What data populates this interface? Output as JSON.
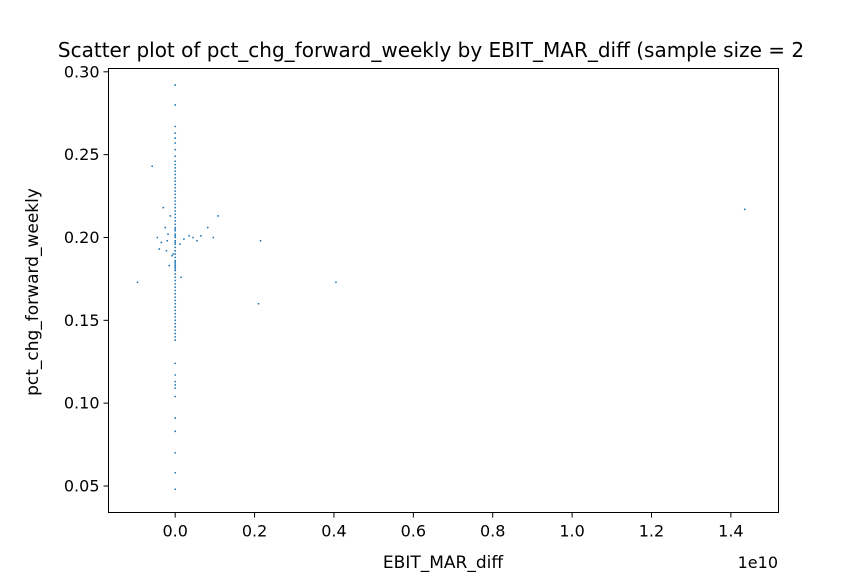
{
  "chart_data": {
    "type": "scatter",
    "title": "Scatter plot of pct_chg_forward_weekly by EBIT_MAR_diff (sample size = 2",
    "xlabel": "EBIT_MAR_diff",
    "ylabel": "pct_chg_forward_weekly",
    "x_offset_label": "1e10",
    "xlim": [
      -0.168,
      1.52
    ],
    "ylim": [
      0.034,
      0.302
    ],
    "x_ticks": [
      0.0,
      0.2,
      0.4,
      0.6,
      0.8,
      1.0,
      1.2,
      1.4
    ],
    "x_tick_labels": [
      "0.0",
      "0.2",
      "0.4",
      "0.6",
      "0.8",
      "1.0",
      "1.2",
      "1.4"
    ],
    "y_ticks": [
      0.05,
      0.1,
      0.15,
      0.2,
      0.25,
      0.3
    ],
    "y_tick_labels": [
      "0.05",
      "0.10",
      "0.15",
      "0.20",
      "0.25",
      "0.30"
    ],
    "grid": false,
    "marker_color": "#1f77b4",
    "series": [
      {
        "x": [
          0.0,
          0.0,
          0.0,
          0.0,
          0.0,
          0.0,
          0.0,
          0.0,
          0.0,
          0.0,
          0.0,
          0.0,
          0.0,
          0.0,
          0.0,
          0.0,
          0.0,
          0.0,
          0.0,
          0.0,
          0.0,
          0.0,
          0.0,
          0.0,
          0.0,
          0.0,
          0.0,
          0.0,
          0.0,
          0.0,
          0.0,
          0.0,
          0.0,
          0.0,
          0.0,
          0.0,
          0.0,
          0.0,
          0.0,
          0.0,
          0.0,
          0.0,
          0.0,
          0.0,
          0.0,
          0.0,
          0.0,
          0.0,
          0.0,
          0.0,
          0.0,
          0.0,
          0.0,
          0.0,
          0.0,
          0.0,
          0.0,
          0.0,
          0.0,
          0.0,
          0.0,
          0.0,
          0.0,
          0.0,
          0.0,
          0.0,
          0.0,
          0.0,
          0.0,
          0.0,
          0.0,
          0.0,
          0.0,
          0.0,
          0.0,
          0.0,
          0.0,
          0.0,
          0.0,
          0.0,
          0.0,
          -0.095,
          -0.058,
          -0.045,
          -0.035,
          -0.022,
          -0.015,
          -0.04,
          -0.03,
          -0.018,
          -0.02,
          -0.012,
          -0.008,
          -0.025,
          -0.005,
          0.012,
          0.015,
          0.022,
          0.035,
          0.045,
          0.055,
          0.065,
          0.082,
          0.096,
          0.108,
          0.21,
          0.215,
          0.405,
          1.435
        ],
        "y": [
          0.292,
          0.28,
          0.267,
          0.263,
          0.26,
          0.257,
          0.253,
          0.249,
          0.246,
          0.244,
          0.242,
          0.24,
          0.238,
          0.236,
          0.234,
          0.232,
          0.23,
          0.228,
          0.226,
          0.224,
          0.222,
          0.22,
          0.218,
          0.216,
          0.214,
          0.212,
          0.21,
          0.208,
          0.206,
          0.204,
          0.202,
          0.2,
          0.198,
          0.196,
          0.194,
          0.192,
          0.19,
          0.188,
          0.186,
          0.184,
          0.182,
          0.18,
          0.178,
          0.176,
          0.174,
          0.172,
          0.17,
          0.168,
          0.166,
          0.164,
          0.162,
          0.16,
          0.158,
          0.156,
          0.154,
          0.152,
          0.15,
          0.148,
          0.146,
          0.144,
          0.142,
          0.14,
          0.138,
          0.124,
          0.117,
          0.113,
          0.111,
          0.109,
          0.104,
          0.091,
          0.083,
          0.07,
          0.058,
          0.048,
          0.197,
          0.185,
          0.183,
          0.192,
          0.201,
          0.205,
          0.181,
          0.173,
          0.243,
          0.2,
          0.197,
          0.192,
          0.183,
          0.193,
          0.218,
          0.202,
          0.198,
          0.213,
          0.189,
          0.206,
          0.19,
          0.196,
          0.176,
          0.199,
          0.201,
          0.2,
          0.198,
          0.201,
          0.206,
          0.2,
          0.213,
          0.16,
          0.198,
          0.173,
          0.217
        ]
      }
    ]
  }
}
